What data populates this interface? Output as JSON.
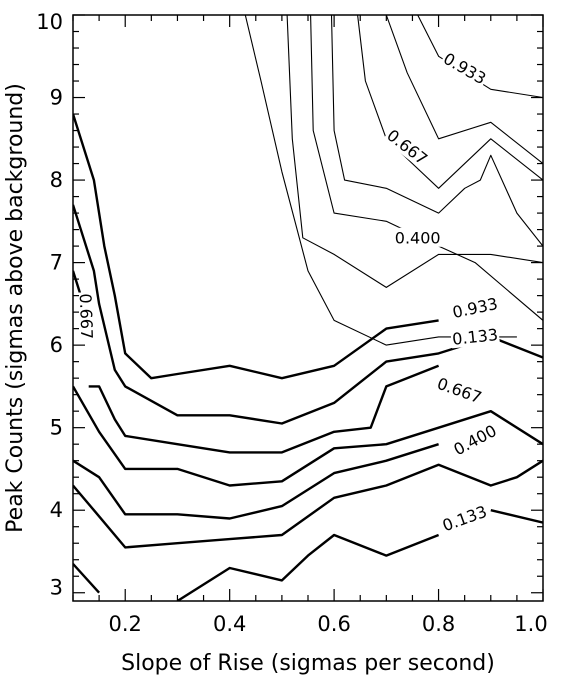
{
  "chart_data": {
    "type": "line",
    "title": "",
    "xlabel": "Slope of Rise (sigmas per second)",
    "ylabel": "Peak Counts (sigmas above background)",
    "xlim": [
      0.1,
      1.0
    ],
    "ylim": [
      2.9,
      10.0
    ],
    "grid": false,
    "x_ticks": [
      {
        "value": 0.2,
        "label": "0.2"
      },
      {
        "value": 0.4,
        "label": "0.4"
      },
      {
        "value": 0.6,
        "label": "0.6"
      },
      {
        "value": 0.8,
        "label": "0.8"
      },
      {
        "value": 1.0,
        "label": "1.0"
      }
    ],
    "y_ticks": [
      {
        "value": 3,
        "label": "3"
      },
      {
        "value": 4,
        "label": "4"
      },
      {
        "value": 5,
        "label": "5"
      },
      {
        "value": 6,
        "label": "6"
      },
      {
        "value": 7,
        "label": "7"
      },
      {
        "value": 8,
        "label": "8"
      },
      {
        "value": 9,
        "label": "9"
      },
      {
        "value": 10,
        "label": "10"
      }
    ],
    "series": [
      {
        "group": "thin",
        "points": [
          [
            0.43,
            10.0
          ],
          [
            0.46,
            9.2
          ],
          [
            0.5,
            8.1
          ],
          [
            0.55,
            6.9
          ],
          [
            0.6,
            6.3
          ],
          [
            0.7,
            6.0
          ],
          [
            0.8,
            6.1
          ],
          [
            0.9,
            6.1
          ],
          [
            0.95,
            6.1
          ]
        ]
      },
      {
        "group": "thin",
        "points": [
          [
            0.51,
            10.0
          ],
          [
            0.52,
            8.5
          ],
          [
            0.54,
            7.3
          ],
          [
            0.6,
            7.1
          ],
          [
            0.7,
            6.7
          ],
          [
            0.8,
            7.1
          ],
          [
            0.9,
            7.1
          ],
          [
            1.0,
            7.0
          ]
        ]
      },
      {
        "group": "thin",
        "points": [
          [
            0.555,
            10.0
          ],
          [
            0.56,
            8.6
          ],
          [
            0.6,
            7.6
          ],
          [
            0.7,
            7.5
          ],
          [
            0.8,
            7.2
          ],
          [
            0.87,
            7.0
          ],
          [
            1.0,
            6.3
          ]
        ]
      },
      {
        "group": "thin",
        "points": [
          [
            0.595,
            10.0
          ],
          [
            0.6,
            8.6
          ],
          [
            0.62,
            8.0
          ],
          [
            0.7,
            7.9
          ],
          [
            0.8,
            7.6
          ],
          [
            0.85,
            7.9
          ],
          [
            0.88,
            8.0
          ],
          [
            0.9,
            8.3
          ],
          [
            0.95,
            7.6
          ],
          [
            1.0,
            7.2
          ]
        ]
      },
      {
        "group": "thin",
        "points": [
          [
            0.645,
            10.0
          ],
          [
            0.66,
            9.2
          ],
          [
            0.7,
            8.5
          ],
          [
            0.75,
            8.2
          ],
          [
            0.8,
            7.9
          ],
          [
            0.9,
            8.5
          ],
          [
            1.0,
            8.0
          ]
        ]
      },
      {
        "group": "thin",
        "points": [
          [
            0.7,
            10.0
          ],
          [
            0.74,
            9.3
          ],
          [
            0.8,
            8.5
          ],
          [
            0.9,
            8.7
          ],
          [
            1.0,
            8.2
          ]
        ]
      },
      {
        "group": "thin",
        "points": [
          [
            0.76,
            10.0
          ],
          [
            0.8,
            9.5
          ],
          [
            0.9,
            9.1
          ],
          [
            1.0,
            9.0
          ]
        ]
      },
      {
        "group": "thick",
        "points": [
          [
            0.1,
            8.8
          ],
          [
            0.14,
            8.0
          ],
          [
            0.16,
            7.2
          ],
          [
            0.18,
            6.6
          ],
          [
            0.2,
            5.9
          ],
          [
            0.25,
            5.6
          ],
          [
            0.3,
            5.65
          ],
          [
            0.4,
            5.75
          ],
          [
            0.5,
            5.6
          ],
          [
            0.6,
            5.75
          ],
          [
            0.7,
            6.2
          ],
          [
            0.8,
            6.3
          ]
        ]
      },
      {
        "group": "thick",
        "points": [
          [
            0.1,
            7.7
          ],
          [
            0.14,
            6.9
          ],
          [
            0.15,
            6.5
          ],
          [
            0.18,
            5.7
          ],
          [
            0.2,
            5.5
          ],
          [
            0.3,
            5.15
          ],
          [
            0.4,
            5.15
          ],
          [
            0.5,
            5.05
          ],
          [
            0.6,
            5.3
          ],
          [
            0.7,
            5.8
          ],
          [
            0.8,
            5.9
          ],
          [
            0.9,
            6.1
          ],
          [
            1.0,
            5.85
          ]
        ]
      },
      {
        "group": "thick",
        "points": [
          [
            0.1,
            6.9
          ],
          [
            0.12,
            6.5
          ]
        ]
      },
      {
        "group": "thick",
        "points": [
          [
            0.13,
            5.5
          ],
          [
            0.15,
            5.5
          ],
          [
            0.18,
            5.1
          ],
          [
            0.2,
            4.9
          ],
          [
            0.3,
            4.8
          ],
          [
            0.4,
            4.7
          ],
          [
            0.5,
            4.7
          ],
          [
            0.6,
            4.95
          ],
          [
            0.67,
            5.0
          ],
          [
            0.7,
            5.5
          ],
          [
            0.8,
            5.75
          ]
        ]
      },
      {
        "group": "thick",
        "points": [
          [
            0.1,
            5.5
          ],
          [
            0.15,
            4.95
          ],
          [
            0.2,
            4.5
          ],
          [
            0.3,
            4.5
          ],
          [
            0.4,
            4.3
          ],
          [
            0.5,
            4.35
          ],
          [
            0.6,
            4.75
          ],
          [
            0.7,
            4.8
          ],
          [
            0.8,
            5.0
          ],
          [
            0.9,
            5.2
          ],
          [
            1.0,
            4.8
          ]
        ]
      },
      {
        "group": "thick",
        "points": [
          [
            0.1,
            4.6
          ],
          [
            0.15,
            4.4
          ],
          [
            0.2,
            3.95
          ],
          [
            0.3,
            3.95
          ],
          [
            0.4,
            3.9
          ],
          [
            0.5,
            4.05
          ],
          [
            0.6,
            4.45
          ],
          [
            0.7,
            4.6
          ],
          [
            0.8,
            4.8
          ]
        ]
      },
      {
        "group": "thick",
        "points": [
          [
            0.1,
            4.3
          ],
          [
            0.14,
            4.0
          ],
          [
            0.2,
            3.55
          ],
          [
            0.3,
            3.6
          ],
          [
            0.4,
            3.65
          ],
          [
            0.5,
            3.7
          ],
          [
            0.6,
            4.15
          ],
          [
            0.7,
            4.3
          ],
          [
            0.8,
            4.55
          ],
          [
            0.9,
            4.3
          ],
          [
            0.95,
            4.4
          ],
          [
            1.0,
            4.6
          ]
        ]
      },
      {
        "group": "thick",
        "points": [
          [
            0.1,
            3.35
          ],
          [
            0.15,
            3.0
          ]
        ]
      },
      {
        "group": "thick",
        "points": [
          [
            0.3,
            2.9
          ],
          [
            0.4,
            3.3
          ],
          [
            0.5,
            3.15
          ],
          [
            0.55,
            3.45
          ],
          [
            0.6,
            3.7
          ],
          [
            0.7,
            3.45
          ],
          [
            0.8,
            3.7
          ]
        ]
      },
      {
        "group": "thick",
        "points": [
          [
            0.9,
            4.0
          ],
          [
            1.0,
            3.85
          ]
        ]
      }
    ],
    "annotations": [
      {
        "text": "0.933",
        "x": 0.85,
        "y": 9.35,
        "rotate": 30
      },
      {
        "text": "0.667",
        "x": 0.74,
        "y": 8.4,
        "rotate": 38
      },
      {
        "text": "0.400",
        "x": 0.76,
        "y": 7.3,
        "rotate": 0
      },
      {
        "text": "0.933",
        "x": 0.87,
        "y": 6.45,
        "rotate": -12
      },
      {
        "text": "0.133",
        "x": 0.87,
        "y": 6.1,
        "rotate": -6
      },
      {
        "text": "0.667",
        "x": 0.84,
        "y": 5.45,
        "rotate": 20
      },
      {
        "text": "0.400",
        "x": 0.87,
        "y": 4.85,
        "rotate": -28
      },
      {
        "text": "0.667",
        "x": 0.125,
        "y": 6.35,
        "rotate": 88
      },
      {
        "text": "0.133",
        "x": 0.85,
        "y": 3.9,
        "rotate": -20
      }
    ]
  }
}
